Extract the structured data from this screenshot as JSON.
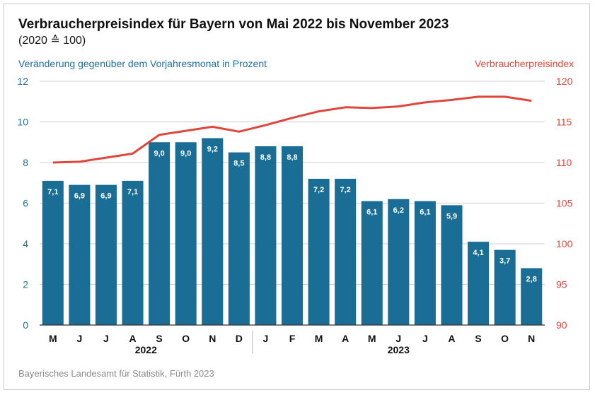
{
  "title": "Verbraucherpreisindex für Bayern von Mai 2022 bis November 2023",
  "subtitle": "(2020 ≙ 100)",
  "left_axis_label": "Veränderung gegenüber dem Vorjahresmonat in Prozent",
  "right_axis_label": "Verbraucherpreisindex",
  "source": "Bayerisches Landesamt für Statistik, Fürth 2023",
  "colors": {
    "bar": "#1a6d94",
    "line": "#e0473c",
    "left_axis": "#1f6f9a",
    "right_axis": "#e0473c"
  },
  "chart_data": {
    "type": "bar",
    "categories": [
      "M",
      "J",
      "J",
      "A",
      "S",
      "O",
      "N",
      "D",
      "J",
      "F",
      "M",
      "A",
      "M",
      "J",
      "J",
      "A",
      "S",
      "O",
      "N"
    ],
    "years": [
      {
        "label": "2022",
        "from": 0,
        "to": 7
      },
      {
        "label": "2023",
        "from": 8,
        "to": 18
      }
    ],
    "series": [
      {
        "type": "bar",
        "axis": "left",
        "values": [
          7.1,
          6.9,
          6.9,
          7.1,
          9.0,
          9.0,
          9.2,
          8.5,
          8.8,
          8.8,
          7.2,
          7.2,
          6.1,
          6.2,
          6.1,
          5.9,
          4.1,
          3.7,
          2.8
        ],
        "labels": [
          "7,1",
          "6,9",
          "6,9",
          "7,1",
          "9,0",
          "9,0",
          "9,2",
          "8,5",
          "8,8",
          "8,8",
          "7,2",
          "7,2",
          "6,1",
          "6,2",
          "6,1",
          "5,9",
          "4,1",
          "3,7",
          "2,8"
        ]
      },
      {
        "type": "line",
        "axis": "right",
        "values": [
          110.0,
          110.1,
          110.6,
          111.1,
          113.4,
          113.9,
          114.4,
          113.8,
          114.6,
          115.5,
          116.3,
          116.8,
          116.7,
          116.9,
          117.4,
          117.7,
          118.1,
          118.1,
          117.6
        ]
      }
    ],
    "left_axis": {
      "ylim": [
        0,
        12
      ],
      "ticks": [
        "0",
        "2",
        "4",
        "6",
        "8",
        "10",
        "12"
      ]
    },
    "right_axis": {
      "ylim": [
        90,
        120
      ],
      "ticks": [
        "90",
        "95",
        "100",
        "105",
        "110",
        "115",
        "120"
      ]
    },
    "grid": true
  }
}
